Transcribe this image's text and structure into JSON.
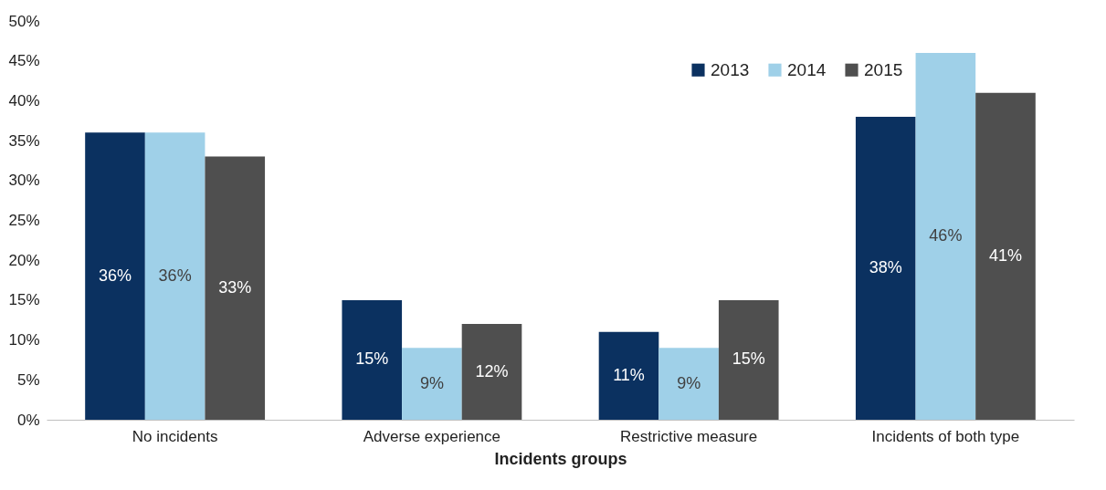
{
  "chart_data": {
    "type": "bar",
    "xlabel": "Incidents groups",
    "categories": [
      "No incidents",
      "Adverse experience",
      "Restrictive measure",
      "Incidents of both type"
    ],
    "series": [
      {
        "name": "2013",
        "color": "#0b3160",
        "values": [
          36,
          15,
          11,
          38
        ],
        "value_labels": [
          "36%",
          "15%",
          "11%",
          "38%"
        ]
      },
      {
        "name": "2014",
        "color": "#9fd0e8",
        "values": [
          36,
          9,
          9,
          46
        ],
        "value_labels": [
          "36%",
          "9%",
          "9%",
          "46%"
        ]
      },
      {
        "name": "2015",
        "color": "#4f4f4f",
        "values": [
          33,
          12,
          15,
          41
        ],
        "value_labels": [
          "33%",
          "12%",
          "15%",
          "41%"
        ]
      }
    ],
    "ylim": [
      0,
      50
    ],
    "yticks": [
      {
        "value": 0,
        "label": "0%"
      },
      {
        "value": 5,
        "label": "5%"
      },
      {
        "value": 10,
        "label": "10%"
      },
      {
        "value": 15,
        "label": "15%"
      },
      {
        "value": 20,
        "label": "20%"
      },
      {
        "value": 25,
        "label": "25%"
      },
      {
        "value": 30,
        "label": "30%"
      },
      {
        "value": 35,
        "label": "35%"
      },
      {
        "value": 40,
        "label": "40%"
      },
      {
        "value": 45,
        "label": "45%"
      },
      {
        "value": 50,
        "label": "50%"
      }
    ],
    "grid": false,
    "legend": "top right"
  }
}
